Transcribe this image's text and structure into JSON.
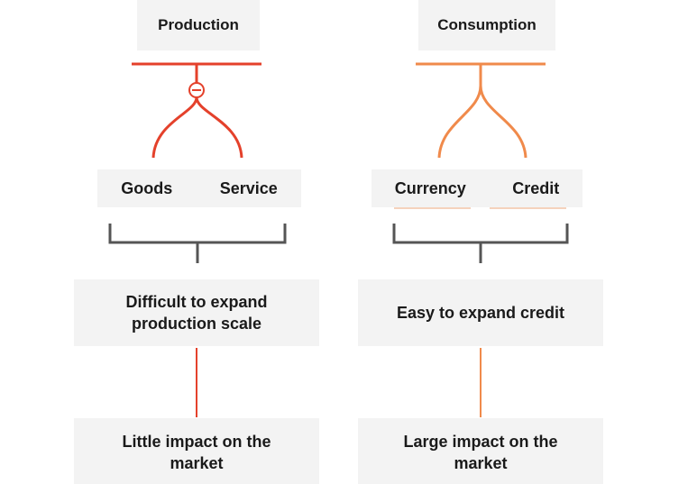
{
  "colors": {
    "production_accent": "#e4412b",
    "consumption_accent": "#f08a4b",
    "bracket": "#555555",
    "box_bg": "#f3f3f3"
  },
  "production": {
    "title": "Production",
    "items": [
      "Goods",
      "Service"
    ],
    "summary": "Difficult to expand production scale",
    "outcome": "Little impact on the market"
  },
  "consumption": {
    "title": "Consumption",
    "items": [
      "Currency",
      "Credit"
    ],
    "summary": "Easy to expand credit",
    "outcome": "Large impact on the market"
  }
}
